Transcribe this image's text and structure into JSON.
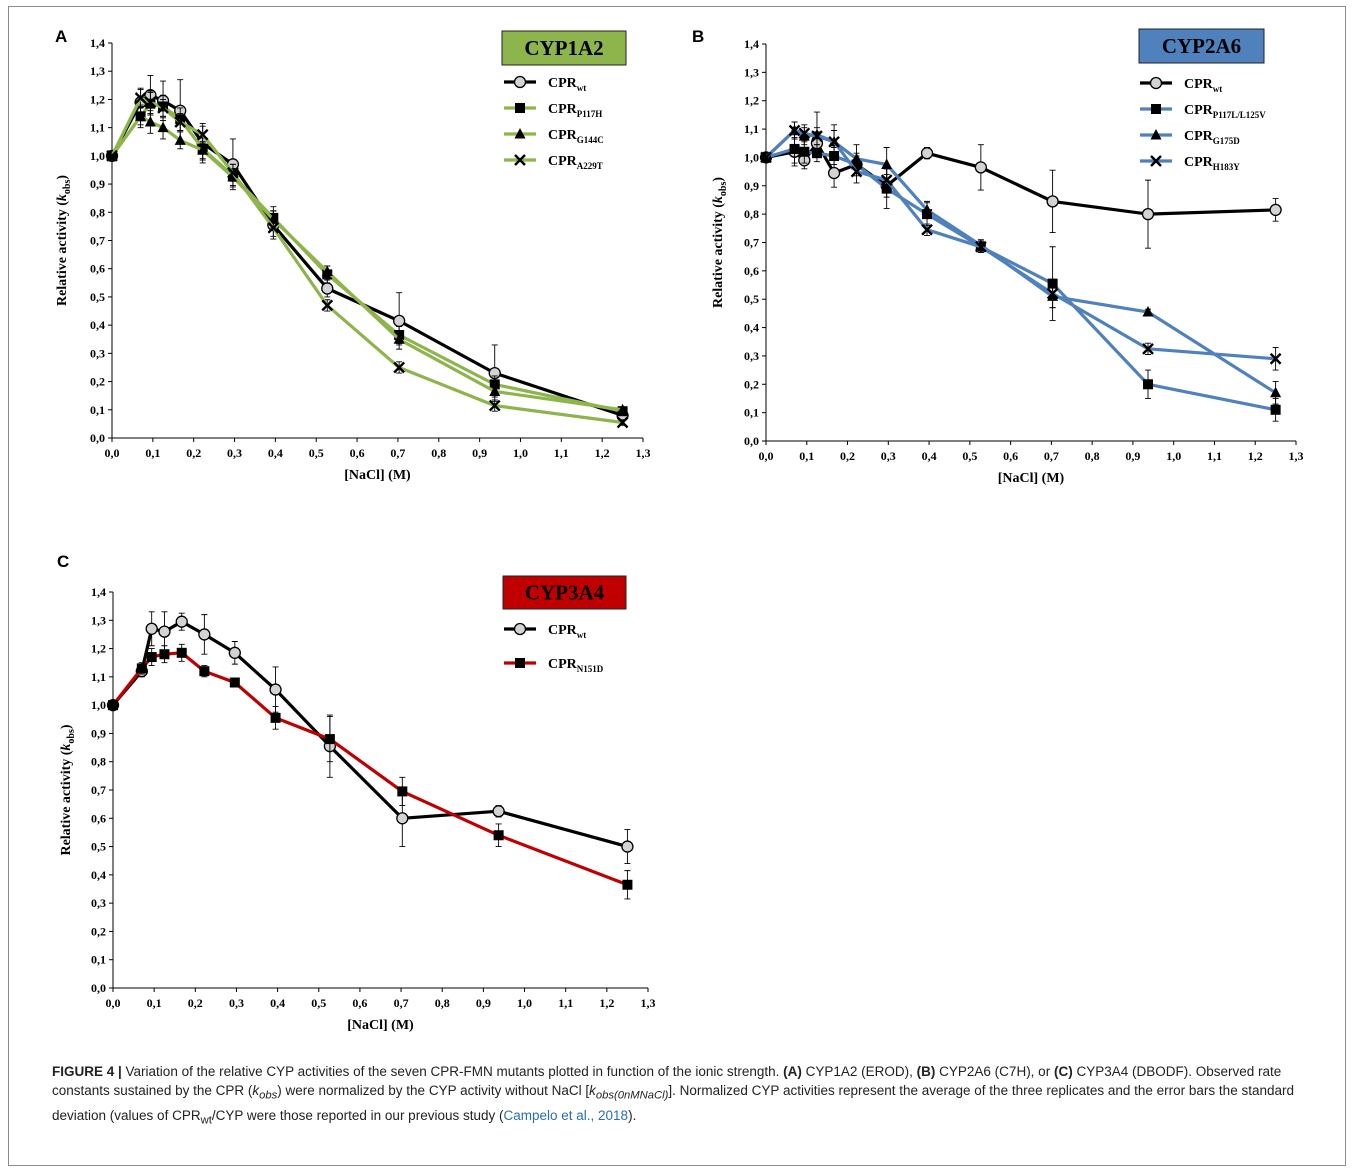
{
  "caption": {
    "figure_label": "FIGURE 4 |",
    "part1": " Variation of the relative CYP activities of the seven CPR-FMN mutants plotted in function of the ionic strength. ",
    "a_label": "(A)",
    "a_text": " CYP1A2 (EROD), ",
    "b_label": "(B)",
    "b_text": " CYP2A6 (C7H), or ",
    "c_label": "(C)",
    "c_text": " CYP3A4 (DBODF). Observed rate constants sustained by the CPR (",
    "kobs": "k",
    "kobs_sub": "obs",
    "part2": ") were normalized by the CYP activity without NaCl [",
    "k0": "k",
    "k0_sub": "obs(0nMNaCl)",
    "part3": "]. Normalized CYP activities represent the average of the three replicates and the error bars the standard deviation (values of CPR",
    "wt_sub": "wt",
    "part4": "/CYP were those reported in our previous study (",
    "citation": "Campelo et al., 2018",
    "part5": ")."
  },
  "chart_data": [
    {
      "panel": "A",
      "type": "line",
      "badge": {
        "text": "CYP1A2",
        "color": "#8db54c",
        "text_color": "#000000"
      },
      "xlabel": "[NaCl] (M)",
      "ylabel": "Relative activity (k_obs)",
      "xlim": [
        0,
        1.3
      ],
      "ylim": [
        0,
        1.4
      ],
      "x_ticks": [
        "0,0",
        "0,1",
        "0,2",
        "0,3",
        "0,4",
        "0,5",
        "0,6",
        "0,7",
        "0,8",
        "0,9",
        "1,0",
        "1,1",
        "1,2",
        "1,3"
      ],
      "y_ticks": [
        "0,0",
        "0,1",
        "0,2",
        "0,3",
        "0,4",
        "0,5",
        "0,6",
        "0,7",
        "0,8",
        "0,9",
        "1,0",
        "1,1",
        "1,2",
        "1,3",
        "1,4"
      ],
      "x": [
        0,
        0.07,
        0.094,
        0.125,
        0.167,
        0.222,
        0.296,
        0.395,
        0.527,
        0.703,
        0.937,
        1.25
      ],
      "series": [
        {
          "name": "CPR",
          "sub": "wt",
          "color": "#000000",
          "marker": "circle",
          "values": [
            1.0,
            1.19,
            1.215,
            1.195,
            1.16,
            1.045,
            0.97,
            0.755,
            0.53,
            0.415,
            0.23,
            0.08
          ],
          "errors": [
            0,
            0.05,
            0.07,
            0.07,
            0.11,
            0.07,
            0.09,
            0.05,
            0.03,
            0.1,
            0.1,
            0.02
          ]
        },
        {
          "name": "CPR",
          "sub": "P117H",
          "color": "#8db54c",
          "marker": "square",
          "values": [
            1.0,
            1.14,
            1.185,
            1.175,
            1.13,
            1.025,
            0.93,
            0.78,
            0.58,
            0.365,
            0.19,
            0.095
          ],
          "errors": [
            0,
            0.03,
            0.04,
            0.04,
            0.04,
            0.04,
            0.04,
            0.04,
            0.03,
            0.03,
            0.03,
            0.01
          ]
        },
        {
          "name": "CPR",
          "sub": "G144C",
          "color": "#8db54c",
          "marker": "triangle",
          "values": [
            1.0,
            1.14,
            1.12,
            1.1,
            1.055,
            1.02,
            0.925,
            0.775,
            0.59,
            0.35,
            0.165,
            0.1
          ],
          "errors": [
            0,
            0.04,
            0.04,
            0.04,
            0.03,
            0.03,
            0.03,
            0.03,
            0.02,
            0.02,
            0.02,
            0.01
          ]
        },
        {
          "name": "CPR",
          "sub": "A229T",
          "color": "#8db54c",
          "marker": "x",
          "values": [
            1.0,
            1.205,
            1.19,
            1.17,
            1.12,
            1.075,
            0.94,
            0.745,
            0.47,
            0.25,
            0.115,
            0.055
          ],
          "errors": [
            0,
            0.03,
            0.04,
            0.03,
            0.03,
            0.03,
            0.03,
            0.03,
            0.02,
            0.02,
            0.02,
            0.01
          ]
        }
      ]
    },
    {
      "panel": "B",
      "type": "line",
      "badge": {
        "text": "CYP2A6",
        "color": "#4f81bd",
        "text_color": "#000000"
      },
      "xlabel": "[NaCl] (M)",
      "ylabel": "Relative activity (k_obs)",
      "xlim": [
        0,
        1.3
      ],
      "ylim": [
        0,
        1.4
      ],
      "x_ticks": [
        "0,0",
        "0,1",
        "0,2",
        "0,3",
        "0,4",
        "0,5",
        "0,6",
        "0,7",
        "0,8",
        "0,9",
        "1,0",
        "1,1",
        "1,2",
        "1,3"
      ],
      "y_ticks": [
        "0,0",
        "0,1",
        "0,2",
        "0,3",
        "0,4",
        "0,5",
        "0,6",
        "0,7",
        "0,8",
        "0,9",
        "1,0",
        "1,1",
        "1,2",
        "1,3",
        "1,4"
      ],
      "x": [
        0,
        0.07,
        0.094,
        0.125,
        0.167,
        0.222,
        0.296,
        0.395,
        0.527,
        0.703,
        0.937,
        1.25
      ],
      "series": [
        {
          "name": "CPR",
          "sub": "wt",
          "color": "#000000",
          "marker": "circle",
          "values": [
            1.0,
            1.02,
            0.99,
            1.05,
            0.945,
            0.975,
            0.9,
            1.015,
            0.965,
            0.845,
            0.8,
            0.815
          ],
          "errors": [
            0,
            0.05,
            0.03,
            0.04,
            0.05,
            0.04,
            0.04,
            0.02,
            0.08,
            0.11,
            0.12,
            0.04
          ]
        },
        {
          "name": "CPR",
          "sub": "P117L/L125V",
          "color": "#4f81bd",
          "marker": "square",
          "values": [
            1.0,
            1.03,
            1.02,
            1.015,
            1.005,
            0.975,
            0.89,
            0.8,
            0.685,
            0.555,
            0.2,
            0.11
          ],
          "errors": [
            0,
            0.05,
            0.04,
            0.03,
            0.03,
            0.03,
            0.07,
            0.04,
            0.02,
            0.13,
            0.05,
            0.04
          ]
        },
        {
          "name": "CPR",
          "sub": "G175D",
          "color": "#4f81bd",
          "marker": "triangle",
          "values": [
            1.0,
            1.095,
            1.075,
            1.08,
            1.055,
            0.995,
            0.975,
            0.815,
            0.69,
            0.51,
            0.455,
            0.17
          ],
          "errors": [
            0,
            0.03,
            0.03,
            0.08,
            0.06,
            0.05,
            0.06,
            0.03,
            0.02,
            0.04,
            0.01,
            0.04
          ]
        },
        {
          "name": "CPR",
          "sub": "H183Y",
          "color": "#4f81bd",
          "marker": "x",
          "values": [
            1.0,
            1.095,
            1.085,
            1.075,
            1.055,
            0.95,
            0.92,
            0.745,
            0.685,
            0.52,
            0.325,
            0.29
          ],
          "errors": [
            0,
            0.03,
            0.03,
            0.03,
            0.04,
            0.04,
            0.04,
            0.02,
            0.02,
            0.05,
            0.02,
            0.04
          ]
        }
      ]
    },
    {
      "panel": "C",
      "type": "line",
      "badge": {
        "text": "CYP3A4",
        "color": "#c00000",
        "text_color": "#000000"
      },
      "xlabel": "[NaCl] (M)",
      "ylabel": "Relative activity (k_obs)",
      "xlim": [
        0,
        1.3
      ],
      "ylim": [
        0,
        1.4
      ],
      "x_ticks": [
        "0,0",
        "0,1",
        "0,2",
        "0,3",
        "0,4",
        "0,5",
        "0,6",
        "0,7",
        "0,8",
        "0,9",
        "1,0",
        "1,1",
        "1,2",
        "1,3"
      ],
      "y_ticks": [
        "0,0",
        "0,1",
        "0,2",
        "0,3",
        "0,4",
        "0,5",
        "0,6",
        "0,7",
        "0,8",
        "0,9",
        "1,0",
        "1,1",
        "1,2",
        "1,3",
        "1,4"
      ],
      "x": [
        0,
        0.07,
        0.094,
        0.125,
        0.167,
        0.222,
        0.296,
        0.395,
        0.527,
        0.703,
        0.937,
        1.25
      ],
      "series": [
        {
          "name": "CPR",
          "sub": "wt",
          "color": "#000000",
          "marker": "circle",
          "values": [
            1.0,
            1.12,
            1.27,
            1.26,
            1.295,
            1.25,
            1.185,
            1.055,
            0.855,
            0.6,
            0.625,
            0.5
          ],
          "errors": [
            0,
            0.02,
            0.06,
            0.07,
            0.03,
            0.07,
            0.04,
            0.08,
            0.11,
            0.1,
            0.02,
            0.06
          ]
        },
        {
          "name": "CPR",
          "sub": "N151D",
          "color": "#c00000",
          "marker": "square",
          "values": [
            1.0,
            1.13,
            1.17,
            1.18,
            1.185,
            1.12,
            1.08,
            0.955,
            0.88,
            0.695,
            0.54,
            0.365
          ],
          "errors": [
            0,
            0.02,
            0.03,
            0.03,
            0.03,
            0.02,
            0.01,
            0.04,
            0.08,
            0.05,
            0.04,
            0.05
          ]
        }
      ]
    }
  ]
}
